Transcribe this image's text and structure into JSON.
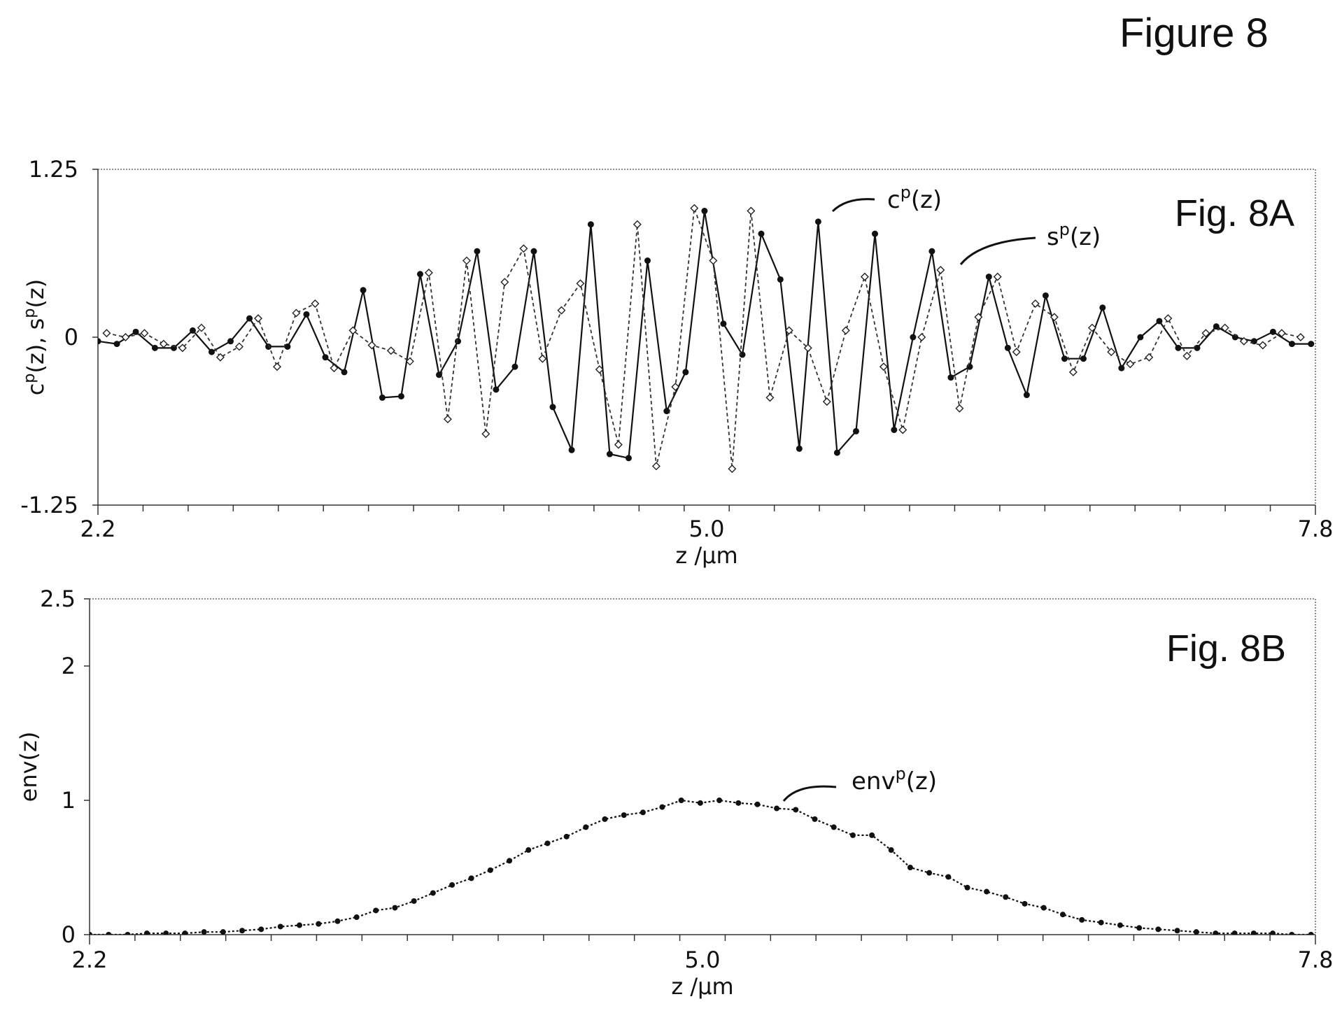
{
  "figure_title": "Figure 8",
  "chart_data": [
    {
      "type": "line",
      "panel_label": "Fig. 8A",
      "xlabel": "z /μm",
      "ylabel": "c<sup>p</sup>(z), s<sup>p</sup>(z)",
      "xlim": [
        2.2,
        7.8
      ],
      "ylim": [
        -1.25,
        1.25
      ],
      "xtick_labels": [
        "2.2",
        "5.0",
        "7.8"
      ],
      "ytick_labels": [
        "1.25",
        "0",
        "-1.25"
      ],
      "annotations": [
        {
          "base": "c",
          "sup": "p",
          "suffix": "(z)"
        },
        {
          "base": "s",
          "sup": "p",
          "suffix": "(z)"
        }
      ],
      "series": [
        {
          "name": "c^p(z)",
          "marker": "filled-circle",
          "line": "solid",
          "x": [
            2.2,
            2.287,
            2.374,
            2.462,
            2.549,
            2.636,
            2.723,
            2.81,
            2.897,
            2.984,
            3.072,
            3.159,
            3.246,
            3.333,
            3.42,
            3.508,
            3.595,
            3.682,
            3.769,
            3.856,
            3.944,
            4.031,
            4.118,
            4.205,
            4.292,
            4.379,
            4.467,
            4.554,
            4.641,
            4.728,
            4.816,
            4.903,
            4.99,
            5.077,
            5.164,
            5.251,
            5.339,
            5.426,
            5.513,
            5.6,
            5.687,
            5.774,
            5.862,
            5.949,
            6.036,
            6.123,
            6.21,
            6.298,
            6.385,
            6.472,
            6.559,
            6.646,
            6.733,
            6.821,
            6.908,
            6.995,
            7.082,
            7.169,
            7.256,
            7.344,
            7.431,
            7.518,
            7.605,
            7.692,
            7.78
          ],
          "values": [
            -0.03,
            -0.05,
            0.04,
            -0.08,
            -0.08,
            0.05,
            -0.11,
            -0.03,
            0.14,
            -0.07,
            -0.07,
            0.17,
            -0.15,
            -0.26,
            0.35,
            -0.45,
            -0.44,
            0.47,
            -0.28,
            -0.03,
            0.64,
            -0.39,
            -0.22,
            0.64,
            -0.52,
            -0.84,
            0.84,
            -0.87,
            -0.9,
            0.57,
            -0.55,
            -0.26,
            0.94,
            0.1,
            -0.13,
            0.77,
            0.43,
            -0.83,
            0.86,
            -0.86,
            -0.7,
            0.77,
            -0.69,
            0.0,
            0.64,
            -0.3,
            -0.22,
            0.45,
            -0.08,
            -0.43,
            0.31,
            -0.16,
            -0.16,
            0.22,
            -0.23,
            0.0,
            0.12,
            -0.08,
            -0.08,
            0.08,
            0.0,
            -0.03,
            0.04,
            -0.05,
            -0.05
          ]
        },
        {
          "name": "s^p(z)",
          "marker": "open-diamond",
          "line": "dashed",
          "x": [
            2.24,
            2.327,
            2.414,
            2.502,
            2.589,
            2.676,
            2.763,
            2.85,
            2.937,
            3.024,
            3.112,
            3.199,
            3.286,
            3.373,
            3.46,
            3.548,
            3.635,
            3.722,
            3.809,
            3.896,
            3.984,
            4.071,
            4.158,
            4.245,
            4.332,
            4.419,
            4.507,
            4.594,
            4.681,
            4.768,
            4.856,
            4.943,
            5.03,
            5.117,
            5.204,
            5.291,
            5.379,
            5.466,
            5.553,
            5.64,
            5.727,
            5.814,
            5.902,
            5.989,
            6.076,
            6.163,
            6.25,
            6.338,
            6.425,
            6.512,
            6.599,
            6.686,
            6.773,
            6.861,
            6.948,
            7.035,
            7.122,
            7.209,
            7.296,
            7.384,
            7.471,
            7.558,
            7.645,
            7.732
          ],
          "values": [
            0.03,
            0.0,
            0.03,
            -0.05,
            -0.08,
            0.07,
            -0.15,
            -0.07,
            0.14,
            -0.22,
            0.18,
            0.25,
            -0.23,
            0.05,
            -0.06,
            -0.1,
            -0.18,
            0.48,
            -0.61,
            0.57,
            -0.72,
            0.41,
            0.66,
            -0.16,
            0.2,
            0.4,
            -0.24,
            -0.8,
            0.84,
            -0.96,
            -0.37,
            0.96,
            0.57,
            -0.98,
            0.94,
            -0.45,
            0.05,
            -0.08,
            -0.48,
            0.05,
            0.45,
            -0.22,
            -0.69,
            0.0,
            0.5,
            -0.53,
            0.15,
            0.45,
            -0.11,
            0.25,
            0.15,
            -0.26,
            0.07,
            -0.11,
            -0.2,
            -0.15,
            0.14,
            -0.14,
            0.03,
            0.07,
            -0.03,
            -0.06,
            0.03,
            0.0
          ]
        }
      ]
    },
    {
      "type": "line",
      "panel_label": "Fig. 8B",
      "xlabel": "z /μm",
      "ylabel": "env(z)",
      "xlim": [
        2.2,
        7.8
      ],
      "ylim": [
        0,
        2.5
      ],
      "xtick_labels": [
        "2.2",
        "5.0",
        "7.8"
      ],
      "ytick_labels": [
        "2.5",
        "2",
        "1",
        "0"
      ],
      "annotations": [
        {
          "base": "env",
          "sup": "p",
          "suffix": "(z)"
        }
      ],
      "series": [
        {
          "name": "env^p(z)",
          "marker": "filled-circle",
          "line": "dotted",
          "x": [
            2.2,
            2.287,
            2.374,
            2.462,
            2.549,
            2.636,
            2.723,
            2.81,
            2.897,
            2.984,
            3.072,
            3.159,
            3.246,
            3.333,
            3.42,
            3.508,
            3.595,
            3.682,
            3.769,
            3.856,
            3.944,
            4.031,
            4.118,
            4.205,
            4.292,
            4.379,
            4.467,
            4.554,
            4.641,
            4.728,
            4.816,
            4.903,
            4.99,
            5.077,
            5.164,
            5.251,
            5.339,
            5.426,
            5.513,
            5.6,
            5.687,
            5.774,
            5.862,
            5.949,
            6.036,
            6.123,
            6.21,
            6.298,
            6.385,
            6.472,
            6.559,
            6.646,
            6.733,
            6.821,
            6.908,
            6.995,
            7.082,
            7.169,
            7.256,
            7.344,
            7.431,
            7.518,
            7.605,
            7.692,
            7.78
          ],
          "values": [
            0.0,
            0.0,
            0.0,
            0.01,
            0.01,
            0.01,
            0.02,
            0.02,
            0.03,
            0.04,
            0.06,
            0.07,
            0.08,
            0.1,
            0.13,
            0.18,
            0.2,
            0.25,
            0.31,
            0.37,
            0.42,
            0.48,
            0.55,
            0.63,
            0.68,
            0.73,
            0.8,
            0.86,
            0.89,
            0.91,
            0.95,
            1.0,
            0.98,
            1.0,
            0.98,
            0.97,
            0.94,
            0.93,
            0.86,
            0.8,
            0.74,
            0.74,
            0.63,
            0.5,
            0.46,
            0.43,
            0.35,
            0.32,
            0.28,
            0.23,
            0.2,
            0.15,
            0.11,
            0.09,
            0.07,
            0.05,
            0.04,
            0.03,
            0.02,
            0.01,
            0.01,
            0.01,
            0.01,
            0.0,
            0.0
          ]
        }
      ]
    }
  ]
}
